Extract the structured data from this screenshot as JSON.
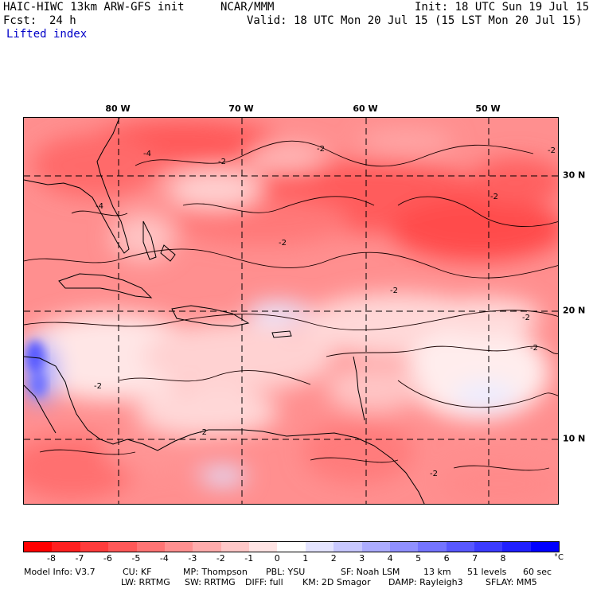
{
  "header": {
    "model": "HAIC-HIWC 13km ARW-GFS init",
    "org": "NCAR/MMM",
    "init": "Init: 18 UTC Sun 19 Jul 15",
    "fcst_label": "Fcst:",
    "fcst_value": "24 h",
    "valid": "Valid: 18 UTC Mon 20 Jul 15 (15 LST Mon 20 Jul 15)",
    "field": "Lifted index"
  },
  "map": {
    "longitude_labels": [
      "80 W",
      "70 W",
      "60 W",
      "50 W"
    ],
    "latitude_labels": [
      "30 N",
      "20 N",
      "10 N"
    ],
    "contour_labels": [
      "-2",
      "-2",
      "-4",
      "-2",
      "-2",
      "-2",
      "-2",
      "-2",
      "-2",
      "-2",
      "-4",
      "-2",
      "-2"
    ]
  },
  "colorbar": {
    "colors": [
      "#ff0000",
      "#ff2020",
      "#ff3c3c",
      "#ff5858",
      "#ff7474",
      "#ff9090",
      "#ffacac",
      "#ffc8c8",
      "#ffe4e4",
      "#ffffff",
      "#e4e4ff",
      "#c8c8ff",
      "#acacff",
      "#9090ff",
      "#7474ff",
      "#5858ff",
      "#3c3cff",
      "#2020ff",
      "#0000ff"
    ],
    "ticks": [
      "-8",
      "-7",
      "-6",
      "-5",
      "-4",
      "-3",
      "-2",
      "-1",
      "0",
      "1",
      "2",
      "3",
      "4",
      "5",
      "6",
      "7",
      "8"
    ],
    "unit": "°C"
  },
  "model_info": {
    "line1": [
      "Model Info: V3.7",
      "CU: KF",
      "MP: Thompson",
      "PBL: YSU",
      "SF: Noah LSM",
      "13 km",
      "51 levels",
      "60 sec"
    ],
    "line2": [
      "LW: RRTMG",
      "SW: RRTMG",
      "DIFF: full",
      "KM: 2D Smagor",
      "DAMP: Rayleigh3",
      "SFLAY: MM5"
    ]
  }
}
